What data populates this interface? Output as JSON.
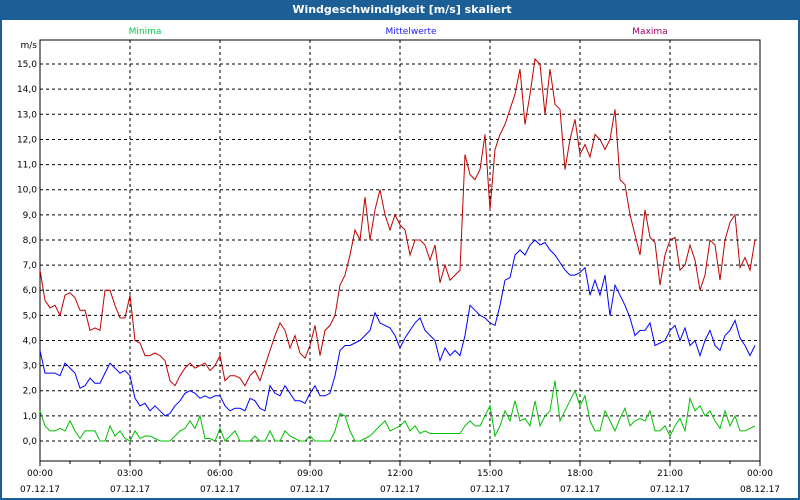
{
  "window": {
    "title": "Windgeschwindigkeit [m/s] skaliert"
  },
  "chart_data": {
    "type": "line",
    "title": "Windgeschwindigkeit [m/s] skaliert",
    "ylabel": "m/s",
    "ylim": [
      -0.8,
      15.95
    ],
    "xlim_hours": [
      0,
      24
    ],
    "grid": true,
    "legend_placement": "top",
    "y_ticks": [
      "0,0",
      "1,0",
      "2,0",
      "3,0",
      "4,0",
      "5,0",
      "6,0",
      "7,0",
      "8,0",
      "9,0",
      "10,0",
      "11,0",
      "12,0",
      "13,0",
      "14,0",
      "15,0"
    ],
    "x_ticks": [
      {
        "time": "00:00",
        "date": "07.12.17"
      },
      {
        "time": "03:00",
        "date": "07.12.17"
      },
      {
        "time": "06:00",
        "date": "07.12.17"
      },
      {
        "time": "09:00",
        "date": "07.12.17"
      },
      {
        "time": "12:00",
        "date": "07.12.17"
      },
      {
        "time": "15:00",
        "date": "07.12.17"
      },
      {
        "time": "18:00",
        "date": "07.12.17"
      },
      {
        "time": "21:00",
        "date": "07.12.17"
      },
      {
        "time": "00:00",
        "date": "08.12.17"
      }
    ],
    "sample_interval_minutes": 10,
    "series": [
      {
        "name": "Minima",
        "color": "#00c000",
        "label_color": "#00cc44",
        "values": [
          1.2,
          0.6,
          0.4,
          0.4,
          0.5,
          0.4,
          0.8,
          0.4,
          0.1,
          0.4,
          0.4,
          0.4,
          0.0,
          0.0,
          0.6,
          0.2,
          0.4,
          0.1,
          0.0,
          0.4,
          0.1,
          0.2,
          0.2,
          0.1,
          0.0,
          0.0,
          0.0,
          0.2,
          0.4,
          0.5,
          0.8,
          0.5,
          1.0,
          0.1,
          0.1,
          0.0,
          0.5,
          0.0,
          0.2,
          0.4,
          0.0,
          0.0,
          0.0,
          0.2,
          0.0,
          0.0,
          0.4,
          0.0,
          0.0,
          0.4,
          0.2,
          0.1,
          0.0,
          0.0,
          0.2,
          0.0,
          0.0,
          0.0,
          0.0,
          0.4,
          1.1,
          1.0,
          0.4,
          0.0,
          0.0,
          0.1,
          0.2,
          0.4,
          0.6,
          0.8,
          0.4,
          0.5,
          0.6,
          0.8,
          0.4,
          0.6,
          0.3,
          0.4,
          0.3,
          0.3,
          0.3,
          0.3,
          0.3,
          0.3,
          0.3,
          0.6,
          0.8,
          0.6,
          0.6,
          1.0,
          1.4,
          0.2,
          0.6,
          1.2,
          0.8,
          1.6,
          0.8,
          0.9,
          0.6,
          1.6,
          0.6,
          1.0,
          1.2,
          2.4,
          0.8,
          1.2,
          1.6,
          2.0,
          1.4,
          1.8,
          0.8,
          0.4,
          0.4,
          1.2,
          0.8,
          0.4,
          0.9,
          1.3,
          0.6,
          0.8,
          0.9,
          0.8,
          1.2,
          0.4,
          0.4,
          0.6,
          0.2,
          0.6,
          0.9,
          0.4,
          1.7,
          1.2,
          1.4,
          1.0,
          1.2,
          0.8,
          0.5,
          1.2,
          0.6,
          1.0,
          0.4,
          0.4,
          0.5,
          0.6
        ]
      },
      {
        "name": "Mittelwerte",
        "color": "#0000ff",
        "label_color": "#2020ff",
        "values": [
          3.6,
          2.7,
          2.7,
          2.7,
          2.6,
          3.1,
          2.9,
          2.7,
          2.1,
          2.2,
          2.5,
          2.3,
          2.3,
          2.7,
          3.1,
          2.9,
          2.7,
          2.8,
          2.6,
          1.7,
          1.4,
          1.5,
          1.2,
          1.4,
          1.2,
          1.0,
          1.1,
          1.4,
          1.6,
          1.9,
          2.0,
          1.9,
          1.7,
          1.8,
          1.7,
          1.8,
          1.8,
          1.4,
          1.2,
          1.3,
          1.3,
          1.2,
          1.7,
          1.6,
          1.3,
          1.2,
          2.2,
          1.9,
          1.8,
          2.2,
          1.9,
          1.6,
          1.6,
          1.5,
          1.9,
          2.2,
          1.8,
          1.8,
          1.9,
          2.6,
          3.6,
          3.8,
          3.8,
          3.9,
          4.0,
          4.2,
          4.4,
          5.1,
          4.7,
          4.6,
          4.5,
          4.2,
          3.7,
          4.1,
          4.4,
          4.7,
          4.9,
          4.4,
          4.2,
          4.0,
          3.2,
          3.7,
          3.4,
          3.6,
          3.4,
          4.2,
          5.4,
          5.2,
          5.0,
          4.9,
          4.7,
          4.6,
          5.4,
          6.4,
          6.5,
          7.4,
          7.6,
          7.4,
          7.8,
          8.0,
          7.8,
          7.9,
          7.6,
          7.4,
          7.1,
          6.8,
          6.6,
          6.6,
          6.7,
          6.9,
          5.8,
          6.4,
          5.8,
          6.6,
          5.0,
          6.2,
          5.8,
          5.4,
          4.9,
          4.2,
          4.4,
          4.4,
          4.7,
          3.8,
          3.9,
          4.0,
          4.4,
          4.6,
          4.0,
          4.5,
          3.8,
          4.0,
          3.4,
          4.0,
          4.4,
          3.8,
          3.6,
          4.2,
          4.4,
          4.8,
          4.1,
          3.8,
          3.4,
          3.8
        ]
      },
      {
        "name": "Maxima",
        "color": "#c00000",
        "label_color": "#990066",
        "values": [
          6.8,
          5.6,
          5.3,
          5.4,
          5.0,
          5.8,
          5.9,
          5.7,
          5.2,
          5.2,
          4.4,
          4.5,
          4.4,
          6.0,
          6.0,
          5.4,
          4.9,
          4.9,
          5.8,
          4.0,
          3.9,
          3.4,
          3.4,
          3.5,
          3.4,
          3.2,
          2.4,
          2.2,
          2.6,
          2.9,
          3.1,
          2.9,
          3.0,
          3.1,
          2.8,
          3.0,
          3.4,
          2.4,
          2.6,
          2.6,
          2.5,
          2.2,
          2.6,
          2.8,
          2.4,
          3.0,
          3.6,
          4.2,
          4.7,
          4.4,
          3.7,
          4.2,
          3.5,
          3.3,
          3.8,
          4.6,
          3.4,
          4.4,
          4.6,
          5.0,
          6.2,
          6.6,
          7.4,
          8.4,
          8.0,
          9.7,
          8.0,
          9.2,
          10.0,
          9.0,
          8.4,
          9.0,
          8.6,
          8.4,
          7.4,
          8.0,
          8.0,
          7.8,
          7.2,
          7.8,
          6.3,
          7.0,
          6.4,
          6.6,
          6.8,
          11.4,
          10.6,
          10.4,
          10.8,
          12.2,
          9.2,
          11.6,
          12.2,
          12.6,
          13.2,
          13.8,
          14.8,
          12.6,
          13.8,
          15.2,
          15.0,
          13.0,
          14.8,
          13.4,
          13.2,
          10.8,
          12.0,
          12.8,
          11.4,
          11.8,
          11.3,
          12.2,
          12.0,
          11.6,
          12.0,
          13.2,
          10.4,
          10.2,
          9.0,
          8.2,
          7.4,
          9.2,
          8.1,
          7.9,
          6.2,
          7.4,
          8.0,
          8.1,
          6.8,
          7.0,
          7.8,
          7.2,
          6.0,
          6.6,
          8.0,
          7.8,
          6.4,
          8.0,
          8.7,
          9.0,
          6.9,
          7.3,
          6.8,
          8.0
        ]
      }
    ]
  }
}
